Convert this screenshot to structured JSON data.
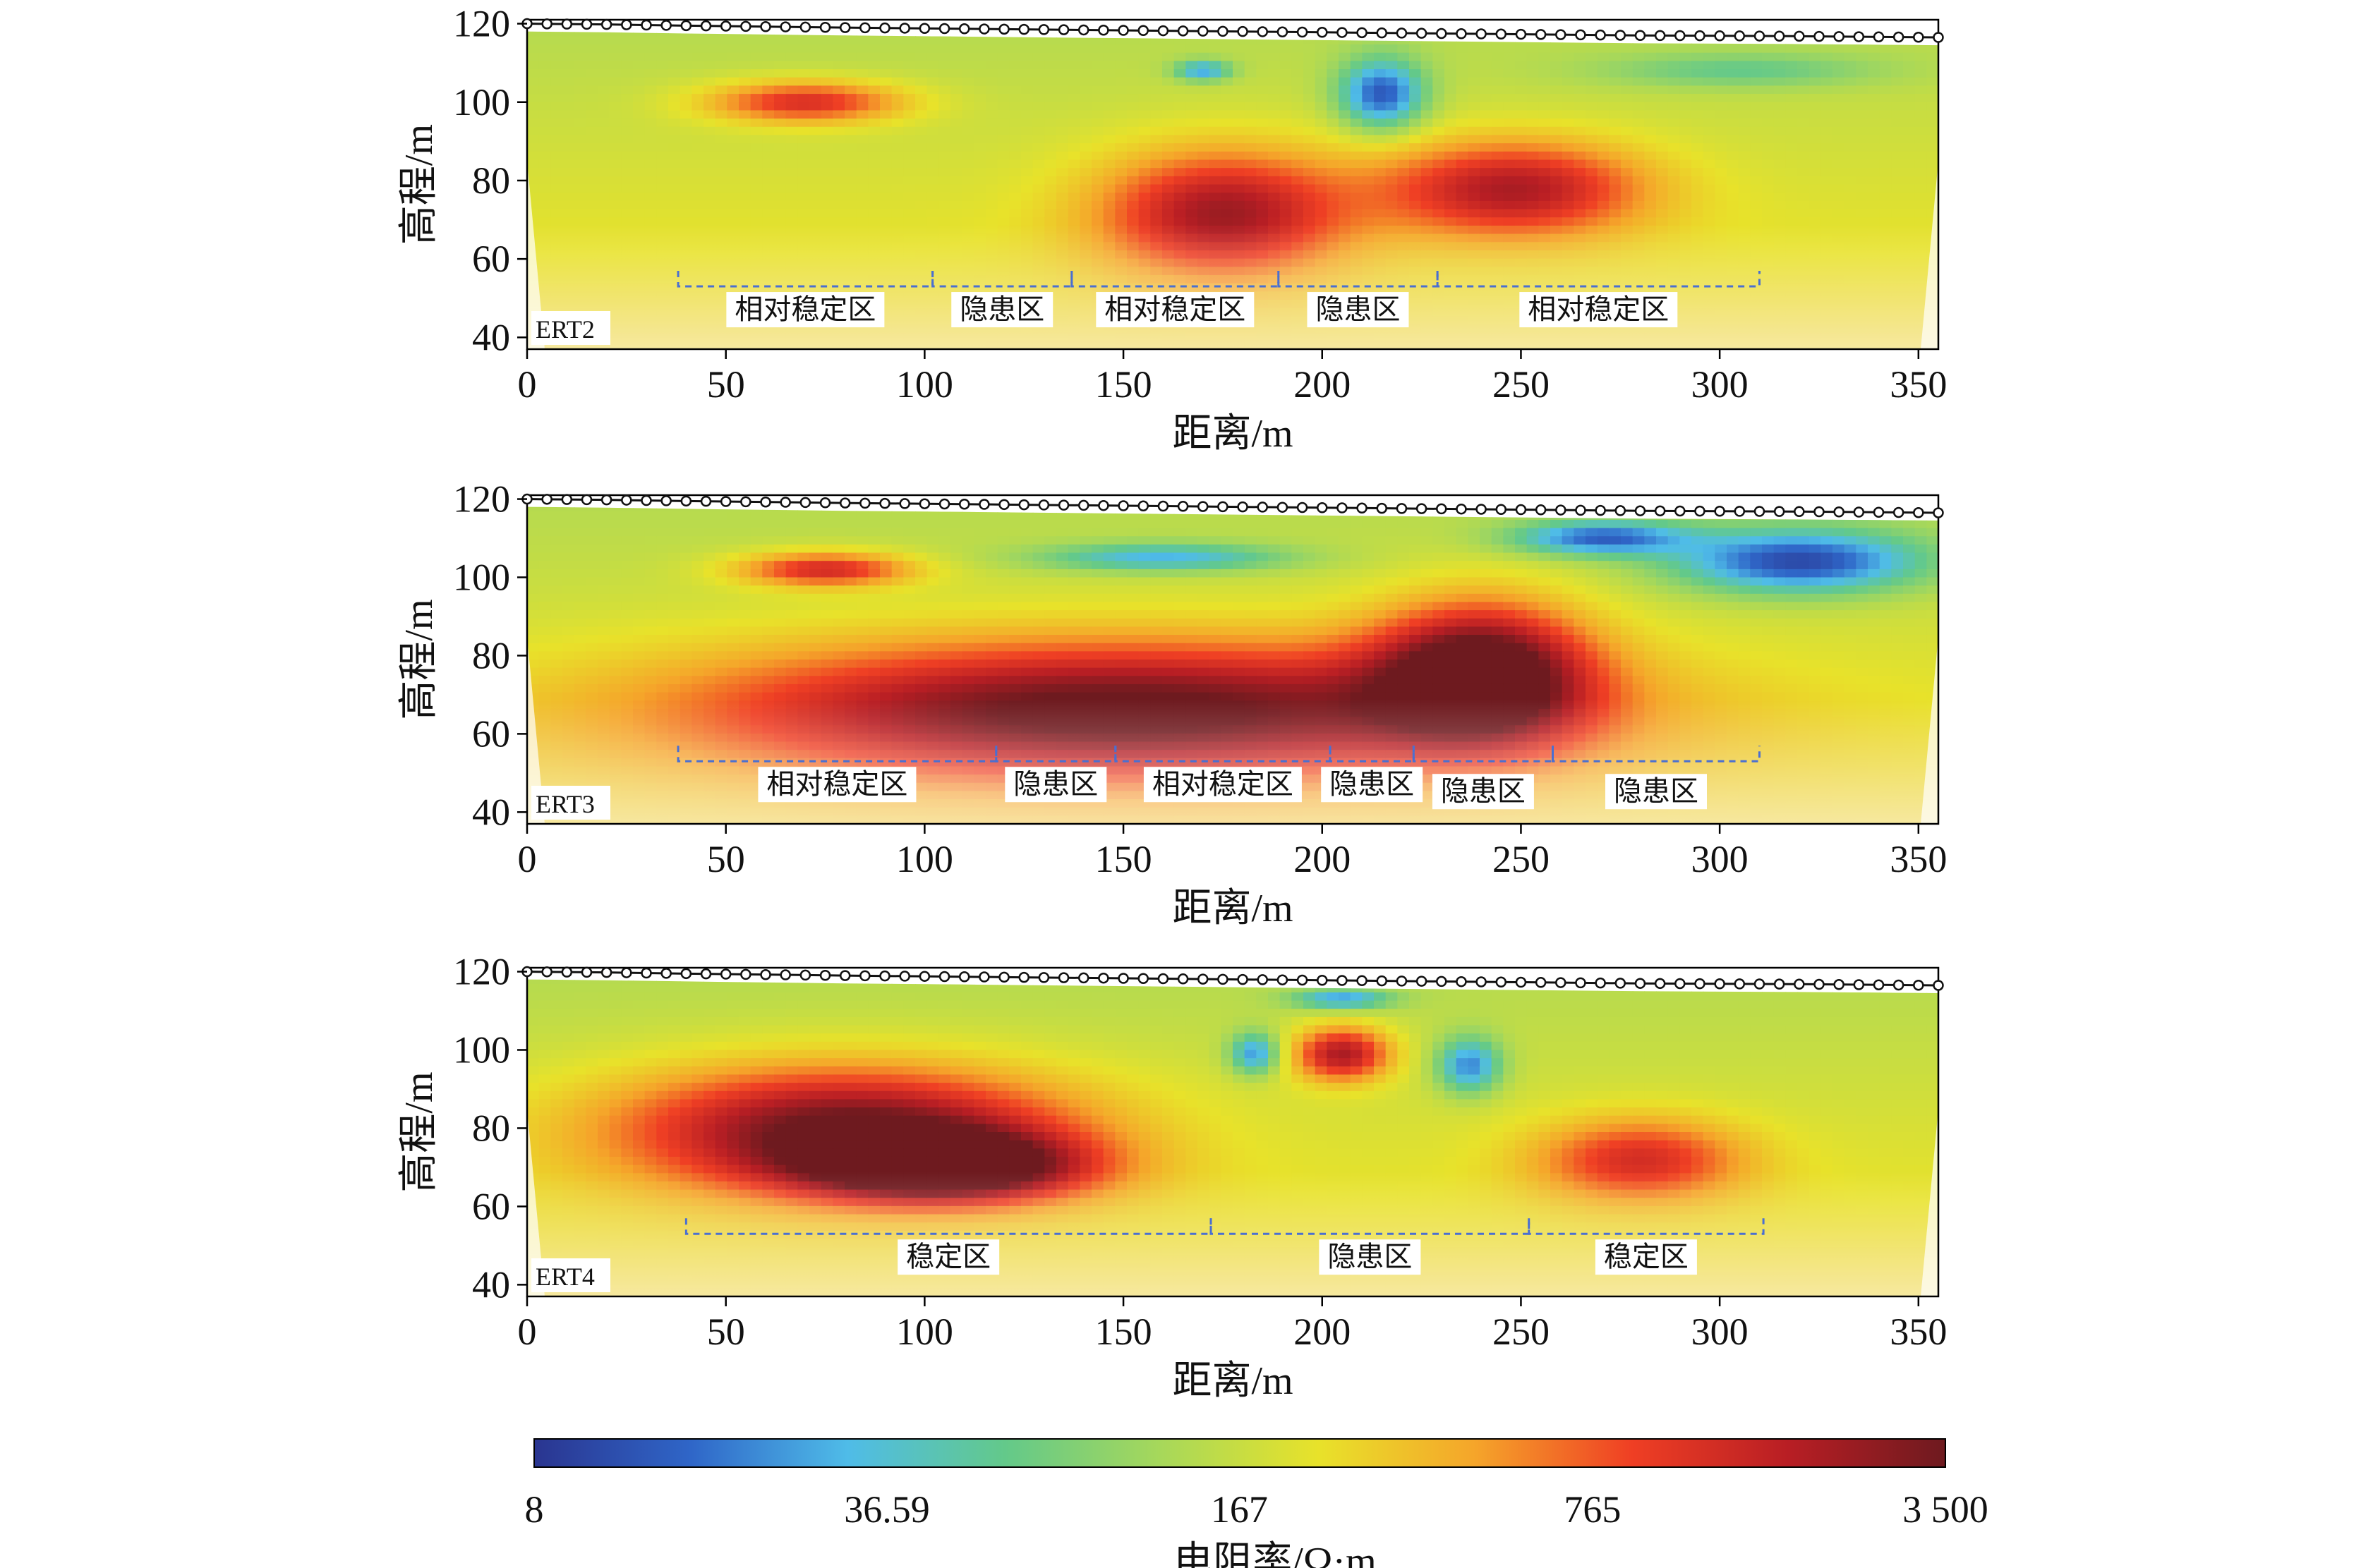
{
  "chart_data": {
    "type": "heatmap",
    "colormap": [
      "#2a3590",
      "#2f66c8",
      "#4fbce8",
      "#63c98a",
      "#a7d85a",
      "#e8e22a",
      "#f5a52a",
      "#ef3f24",
      "#b81e24",
      "#6e1a1f"
    ],
    "colorbar": {
      "label": "电阻率/Ω·m",
      "tick_labels": [
        "8",
        "36.59",
        "167",
        "765",
        "3 500"
      ],
      "tick_values": [
        8,
        36.59,
        167,
        765,
        3500
      ],
      "scale": "log",
      "range": [
        8,
        3500
      ]
    },
    "shared_xlabel": "距离/m",
    "shared_ylabel": "高程/m",
    "xlim": [
      0,
      355
    ],
    "ylim": [
      37,
      121
    ],
    "xticks": [
      0,
      50,
      100,
      150,
      200,
      250,
      300,
      350
    ],
    "yticks": [
      40,
      60,
      80,
      100,
      120
    ],
    "topography": {
      "x": [
        0,
        20,
        40,
        80,
        120,
        160,
        200,
        240,
        280,
        320,
        355
      ],
      "elevation": [
        120,
        119.8,
        119.5,
        119,
        118.6,
        118.2,
        117.8,
        117.4,
        117,
        116.8,
        116.5
      ]
    },
    "profiles": [
      {
        "name": "ERT2",
        "zones": [
          {
            "label": "相对稳定区",
            "x_start": 38,
            "x_end": 102
          },
          {
            "label": "隐患区",
            "x_start": 102,
            "x_end": 137
          },
          {
            "label": "相对稳定区",
            "x_start": 137,
            "x_end": 189
          },
          {
            "label": "隐患区",
            "x_start": 189,
            "x_end": 229
          },
          {
            "label": "相对稳定区",
            "x_start": 229,
            "x_end": 310
          }
        ],
        "anomalies": [
          {
            "x": 70,
            "y": 100,
            "rx": 28,
            "ry": 6,
            "value": 1100
          },
          {
            "x": 175,
            "y": 72,
            "rx": 35,
            "ry": 18,
            "value": 1600
          },
          {
            "x": 248,
            "y": 78,
            "rx": 38,
            "ry": 14,
            "value": 1500
          },
          {
            "x": 215,
            "y": 102,
            "rx": 12,
            "ry": 10,
            "value": 12
          },
          {
            "x": 170,
            "y": 108,
            "rx": 8,
            "ry": 3,
            "value": 25
          },
          {
            "x": 305,
            "y": 108,
            "rx": 40,
            "ry": 5,
            "value": 60
          },
          {
            "x": 120,
            "y": 75,
            "rx": 55,
            "ry": 14,
            "value": 150
          }
        ]
      },
      {
        "name": "ERT3",
        "zones": [
          {
            "label": "相对稳定区",
            "x_start": 38,
            "x_end": 118
          },
          {
            "label": "隐患区",
            "x_start": 118,
            "x_end": 148
          },
          {
            "label": "相对稳定区",
            "x_start": 148,
            "x_end": 202
          },
          {
            "label": "隐患区",
            "x_start": 202,
            "x_end": 223
          },
          {
            "label": "隐患区",
            "x_start": 223,
            "x_end": 258
          },
          {
            "label": "隐患区",
            "x_start": 258,
            "x_end": 310
          }
        ],
        "anomalies": [
          {
            "x": 75,
            "y": 102,
            "rx": 25,
            "ry": 5,
            "value": 1200
          },
          {
            "x": 150,
            "y": 66,
            "rx": 120,
            "ry": 20,
            "value": 3000
          },
          {
            "x": 240,
            "y": 76,
            "rx": 30,
            "ry": 20,
            "value": 3200
          },
          {
            "x": 320,
            "y": 104,
            "rx": 35,
            "ry": 9,
            "value": 10
          },
          {
            "x": 160,
            "y": 105,
            "rx": 35,
            "ry": 4,
            "value": 28
          },
          {
            "x": 270,
            "y": 110,
            "rx": 25,
            "ry": 5,
            "value": 15
          }
        ]
      },
      {
        "name": "ERT4",
        "zones": [
          {
            "label": "稳定区",
            "x_start": 40,
            "x_end": 172
          },
          {
            "label": "隐患区",
            "x_start": 172,
            "x_end": 252
          },
          {
            "label": "稳定区",
            "x_start": 252,
            "x_end": 311
          }
        ],
        "anomalies": [
          {
            "x": 80,
            "y": 80,
            "rx": 65,
            "ry": 18,
            "value": 2800
          },
          {
            "x": 105,
            "y": 70,
            "rx": 40,
            "ry": 10,
            "value": 3300
          },
          {
            "x": 280,
            "y": 72,
            "rx": 30,
            "ry": 12,
            "value": 900
          },
          {
            "x": 205,
            "y": 99,
            "rx": 14,
            "ry": 8,
            "value": 1800
          },
          {
            "x": 183,
            "y": 99,
            "rx": 7,
            "ry": 6,
            "value": 20
          },
          {
            "x": 237,
            "y": 96,
            "rx": 9,
            "ry": 8,
            "value": 18
          },
          {
            "x": 205,
            "y": 113,
            "rx": 14,
            "ry": 3,
            "value": 25
          }
        ]
      }
    ]
  }
}
